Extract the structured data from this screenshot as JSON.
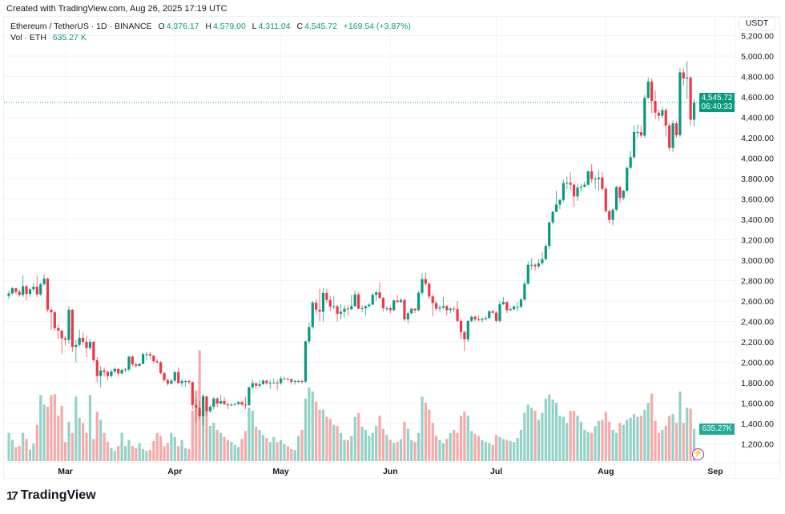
{
  "header": {
    "created": "Created with TradingView.com, Aug 26, 2025 17:19 UTC"
  },
  "legend": {
    "symbol": "Ethereum / TetherUS · 1D · BINANCE",
    "o_label": "O",
    "o": "4,376.17",
    "h_label": "H",
    "h": "4,579.00",
    "l_label": "L",
    "l": "4,311.04",
    "c_label": "C",
    "c": "4,545.72",
    "change": "+169.54 (+3.87%)",
    "vol_label": "Vol · ETH",
    "vol": "635.27 K"
  },
  "price_axis": {
    "currency": "USDT",
    "last_price": "4,545.72",
    "countdown": "06:40:33",
    "volume_label": "635.27K"
  },
  "logo": {
    "text": "TradingView"
  },
  "colors": {
    "up": "#089981",
    "down": "#f23645",
    "vol_up": "#92d2c8",
    "vol_down": "#f7a9a7",
    "grid": "#f0f3fa"
  },
  "icons": {
    "alert": "lightning-icon",
    "logo": "tradingview-logo"
  },
  "chart_data": {
    "type": "candlestick",
    "title": "",
    "start_date": "2025-02-13",
    "interval": "1D",
    "ylim": [
      1100,
      5250
    ],
    "y_ticks": [
      "1,200.00",
      "1,400.00",
      "1,600.00",
      "1,800.00",
      "2,000.00",
      "2,200.00",
      "2,400.00",
      "2,600.00",
      "2,800.00",
      "3,000.00",
      "3,200.00",
      "3,400.00",
      "3,600.00",
      "3,800.00",
      "4,000.00",
      "4,200.00",
      "4,400.00",
      "4,600.00",
      "4,800.00",
      "5,000.00",
      "5,200.00"
    ],
    "x_ticks": [
      {
        "label": "Mar",
        "date": "2025-03-01"
      },
      {
        "label": "Apr",
        "date": "2025-04-01"
      },
      {
        "label": "May",
        "date": "2025-05-01"
      },
      {
        "label": "Jun",
        "date": "2025-06-01"
      },
      {
        "label": "Jul",
        "date": "2025-07-01"
      },
      {
        "label": "Aug",
        "date": "2025-08-01"
      },
      {
        "label": "Sep",
        "date": "2025-09-01"
      }
    ],
    "grid": true,
    "last_price": 4545.72,
    "ohlc": [
      [
        2650,
        2700,
        2620,
        2675
      ],
      [
        2675,
        2740,
        2660,
        2725
      ],
      [
        2725,
        2730,
        2670,
        2690
      ],
      [
        2690,
        2710,
        2640,
        2660
      ],
      [
        2660,
        2850,
        2640,
        2745
      ],
      [
        2745,
        2760,
        2610,
        2670
      ],
      [
        2670,
        2730,
        2640,
        2715
      ],
      [
        2715,
        2780,
        2690,
        2740
      ],
      [
        2740,
        2850,
        2640,
        2665
      ],
      [
        2665,
        2780,
        2650,
        2765
      ],
      [
        2765,
        2860,
        2750,
        2820
      ],
      [
        2820,
        2830,
        2490,
        2515
      ],
      [
        2515,
        2540,
        2320,
        2490
      ],
      [
        2490,
        2510,
        2310,
        2335
      ],
      [
        2335,
        2370,
        2230,
        2310
      ],
      [
        2310,
        2320,
        2080,
        2235
      ],
      [
        2235,
        2260,
        2160,
        2220
      ],
      [
        2220,
        2550,
        2180,
        2515
      ],
      [
        2515,
        2520,
        2100,
        2150
      ],
      [
        2150,
        2220,
        2000,
        2170
      ],
      [
        2170,
        2320,
        2150,
        2240
      ],
      [
        2240,
        2290,
        2170,
        2200
      ],
      [
        2200,
        2260,
        2050,
        2140
      ],
      [
        2140,
        2230,
        2120,
        2200
      ],
      [
        2200,
        2210,
        2000,
        2020
      ],
      [
        2020,
        2050,
        1810,
        1865
      ],
      [
        1865,
        1960,
        1755,
        1920
      ],
      [
        1920,
        1950,
        1860,
        1905
      ],
      [
        1905,
        1920,
        1825,
        1865
      ],
      [
        1865,
        1930,
        1850,
        1910
      ],
      [
        1910,
        1950,
        1890,
        1935
      ],
      [
        1935,
        1940,
        1870,
        1890
      ],
      [
        1890,
        1935,
        1880,
        1925
      ],
      [
        1925,
        1945,
        1900,
        1930
      ],
      [
        1930,
        2065,
        1910,
        2055
      ],
      [
        2055,
        2070,
        1960,
        1980
      ],
      [
        1980,
        2000,
        1945,
        1965
      ],
      [
        1965,
        1995,
        1960,
        1985
      ],
      [
        1985,
        2090,
        1980,
        2080
      ],
      [
        2080,
        2100,
        2020,
        2080
      ],
      [
        2080,
        2100,
        2030,
        2065
      ],
      [
        2065,
        2070,
        1990,
        2010
      ],
      [
        2010,
        2025,
        1985,
        2000
      ],
      [
        2000,
        2010,
        1880,
        1895
      ],
      [
        1895,
        1900,
        1810,
        1825
      ],
      [
        1825,
        1840,
        1770,
        1790
      ],
      [
        1790,
        1840,
        1780,
        1820
      ],
      [
        1820,
        1910,
        1800,
        1905
      ],
      [
        1905,
        1950,
        1790,
        1795
      ],
      [
        1795,
        1840,
        1760,
        1815
      ],
      [
        1815,
        1830,
        1760,
        1815
      ],
      [
        1815,
        1830,
        1780,
        1805
      ],
      [
        1805,
        1810,
        1540,
        1580
      ],
      [
        1580,
        1640,
        1410,
        1555
      ],
      [
        1555,
        1620,
        1440,
        1470
      ],
      [
        1470,
        1690,
        1380,
        1665
      ],
      [
        1665,
        1670,
        1470,
        1520
      ],
      [
        1520,
        1580,
        1505,
        1565
      ],
      [
        1565,
        1660,
        1540,
        1645
      ],
      [
        1645,
        1660,
        1560,
        1595
      ],
      [
        1595,
        1680,
        1590,
        1620
      ],
      [
        1620,
        1660,
        1580,
        1590
      ],
      [
        1590,
        1600,
        1540,
        1580
      ],
      [
        1580,
        1600,
        1570,
        1585
      ],
      [
        1585,
        1600,
        1575,
        1590
      ],
      [
        1590,
        1620,
        1580,
        1610
      ],
      [
        1610,
        1620,
        1570,
        1585
      ],
      [
        1585,
        1660,
        1540,
        1580
      ],
      [
        1580,
        1760,
        1570,
        1755
      ],
      [
        1755,
        1830,
        1740,
        1795
      ],
      [
        1795,
        1800,
        1740,
        1770
      ],
      [
        1770,
        1820,
        1750,
        1785
      ],
      [
        1785,
        1830,
        1780,
        1820
      ],
      [
        1820,
        1830,
        1780,
        1795
      ],
      [
        1795,
        1830,
        1740,
        1800
      ],
      [
        1800,
        1840,
        1790,
        1800
      ],
      [
        1800,
        1830,
        1730,
        1795
      ],
      [
        1795,
        1860,
        1780,
        1840
      ],
      [
        1840,
        1855,
        1830,
        1840
      ],
      [
        1840,
        1850,
        1820,
        1835
      ],
      [
        1835,
        1840,
        1780,
        1810
      ],
      [
        1810,
        1830,
        1780,
        1815
      ],
      [
        1815,
        1830,
        1800,
        1815
      ],
      [
        1815,
        1830,
        1790,
        1810
      ],
      [
        1810,
        2210,
        1800,
        2205
      ],
      [
        2205,
        2390,
        2180,
        2345
      ],
      [
        2345,
        2600,
        2330,
        2585
      ],
      [
        2585,
        2620,
        2470,
        2515
      ],
      [
        2515,
        2720,
        2400,
        2495
      ],
      [
        2495,
        2730,
        2400,
        2680
      ],
      [
        2680,
        2720,
        2580,
        2610
      ],
      [
        2610,
        2650,
        2500,
        2545
      ],
      [
        2545,
        2650,
        2520,
        2550
      ],
      [
        2550,
        2560,
        2400,
        2475
      ],
      [
        2475,
        2570,
        2420,
        2495
      ],
      [
        2495,
        2560,
        2440,
        2525
      ],
      [
        2525,
        2560,
        2460,
        2520
      ],
      [
        2520,
        2660,
        2510,
        2550
      ],
      [
        2550,
        2700,
        2540,
        2665
      ],
      [
        2665,
        2690,
        2520,
        2525
      ],
      [
        2525,
        2560,
        2490,
        2530
      ],
      [
        2530,
        2560,
        2460,
        2550
      ],
      [
        2550,
        2580,
        2530,
        2565
      ],
      [
        2565,
        2680,
        2560,
        2660
      ],
      [
        2660,
        2700,
        2600,
        2685
      ],
      [
        2685,
        2780,
        2620,
        2630
      ],
      [
        2630,
        2640,
        2500,
        2530
      ],
      [
        2530,
        2550,
        2500,
        2530
      ],
      [
        2530,
        2550,
        2480,
        2510
      ],
      [
        2510,
        2620,
        2500,
        2605
      ],
      [
        2605,
        2660,
        2580,
        2590
      ],
      [
        2590,
        2630,
        2580,
        2610
      ],
      [
        2610,
        2630,
        2400,
        2420
      ],
      [
        2420,
        2500,
        2380,
        2480
      ],
      [
        2480,
        2530,
        2470,
        2525
      ],
      [
        2525,
        2530,
        2480,
        2510
      ],
      [
        2510,
        2700,
        2500,
        2680
      ],
      [
        2680,
        2870,
        2660,
        2815
      ],
      [
        2815,
        2880,
        2750,
        2770
      ],
      [
        2770,
        2780,
        2620,
        2645
      ],
      [
        2645,
        2660,
        2450,
        2580
      ],
      [
        2580,
        2600,
        2500,
        2525
      ],
      [
        2525,
        2560,
        2490,
        2535
      ],
      [
        2535,
        2640,
        2520,
        2550
      ],
      [
        2550,
        2560,
        2460,
        2510
      ],
      [
        2510,
        2540,
        2480,
        2525
      ],
      [
        2525,
        2550,
        2490,
        2520
      ],
      [
        2520,
        2600,
        2390,
        2405
      ],
      [
        2405,
        2430,
        2230,
        2295
      ],
      [
        2295,
        2310,
        2110,
        2225
      ],
      [
        2225,
        2410,
        2200,
        2405
      ],
      [
        2405,
        2460,
        2390,
        2445
      ],
      [
        2445,
        2460,
        2400,
        2420
      ],
      [
        2420,
        2460,
        2400,
        2415
      ],
      [
        2415,
        2440,
        2390,
        2425
      ],
      [
        2425,
        2450,
        2410,
        2435
      ],
      [
        2435,
        2510,
        2420,
        2500
      ],
      [
        2500,
        2520,
        2470,
        2485
      ],
      [
        2485,
        2500,
        2390,
        2405
      ],
      [
        2405,
        2600,
        2390,
        2570
      ],
      [
        2570,
        2640,
        2560,
        2590
      ],
      [
        2590,
        2600,
        2480,
        2510
      ],
      [
        2510,
        2540,
        2500,
        2520
      ],
      [
        2520,
        2560,
        2510,
        2545
      ],
      [
        2545,
        2590,
        2500,
        2545
      ],
      [
        2545,
        2630,
        2530,
        2615
      ],
      [
        2615,
        2790,
        2600,
        2770
      ],
      [
        2770,
        2990,
        2760,
        2955
      ],
      [
        2955,
        3020,
        2910,
        2955
      ],
      [
        2955,
        2970,
        2900,
        2940
      ],
      [
        2940,
        3010,
        2920,
        2970
      ],
      [
        2970,
        3080,
        2950,
        3010
      ],
      [
        3010,
        3160,
        3000,
        3140
      ],
      [
        3140,
        3380,
        3110,
        3370
      ],
      [
        3370,
        3480,
        3350,
        3475
      ],
      [
        3475,
        3680,
        3470,
        3545
      ],
      [
        3545,
        3600,
        3500,
        3590
      ],
      [
        3590,
        3790,
        3570,
        3755
      ],
      [
        3755,
        3820,
        3700,
        3760
      ],
      [
        3760,
        3860,
        3690,
        3740
      ],
      [
        3740,
        3750,
        3520,
        3625
      ],
      [
        3625,
        3750,
        3580,
        3710
      ],
      [
        3710,
        3750,
        3670,
        3720
      ],
      [
        3720,
        3770,
        3710,
        3740
      ],
      [
        3740,
        3880,
        3730,
        3870
      ],
      [
        3870,
        3940,
        3760,
        3795
      ],
      [
        3795,
        3830,
        3700,
        3795
      ],
      [
        3795,
        3880,
        3680,
        3810
      ],
      [
        3810,
        3860,
        3680,
        3700
      ],
      [
        3700,
        3720,
        3470,
        3480
      ],
      [
        3480,
        3500,
        3360,
        3395
      ],
      [
        3395,
        3510,
        3340,
        3495
      ],
      [
        3495,
        3730,
        3480,
        3715
      ],
      [
        3715,
        3730,
        3560,
        3610
      ],
      [
        3610,
        3690,
        3590,
        3680
      ],
      [
        3680,
        3920,
        3670,
        3905
      ],
      [
        3905,
        4070,
        3890,
        4010
      ],
      [
        4010,
        4320,
        3990,
        4255
      ],
      [
        4255,
        4330,
        4200,
        4255
      ],
      [
        4255,
        4320,
        4200,
        4220
      ],
      [
        4220,
        4620,
        4200,
        4590
      ],
      [
        4590,
        4790,
        4580,
        4750
      ],
      [
        4750,
        4780,
        4440,
        4560
      ],
      [
        4560,
        4660,
        4380,
        4445
      ],
      [
        4445,
        4480,
        4360,
        4415
      ],
      [
        4415,
        4500,
        4390,
        4470
      ],
      [
        4470,
        4490,
        4210,
        4320
      ],
      [
        4320,
        4340,
        4070,
        4100
      ],
      [
        4100,
        4370,
        4060,
        4340
      ],
      [
        4340,
        4360,
        4200,
        4225
      ],
      [
        4225,
        4880,
        4210,
        4840
      ],
      [
        4840,
        4880,
        4710,
        4780
      ],
      [
        4780,
        4950,
        4580,
        4790
      ],
      [
        4790,
        4800,
        4320,
        4376.17
      ],
      [
        4376.17,
        4579,
        4311.04,
        4545.72
      ]
    ],
    "volume_k": [
      560,
      420,
      280,
      300,
      560,
      440,
      230,
      350,
      720,
      1310,
      1120,
      1080,
      1310,
      1330,
      900,
      1100,
      380,
      780,
      560,
      1280,
      860,
      760,
      560,
      1310,
      440,
      980,
      820,
      560,
      380,
      260,
      200,
      300,
      560,
      300,
      420,
      300,
      260,
      360,
      240,
      200,
      220,
      400,
      560,
      500,
      300,
      360,
      560,
      480,
      300,
      420,
      260,
      240,
      1000,
      1400,
      2200,
      1300,
      1120,
      700,
      760,
      620,
      560,
      480,
      420,
      380,
      320,
      280,
      440,
      600,
      1060,
      1000,
      680,
      620,
      520,
      460,
      380,
      480,
      380,
      420,
      340,
      300,
      240,
      220,
      500,
      620,
      1240,
      1460,
      1380,
      1180,
      1020,
      1020,
      880,
      840,
      720,
      700,
      560,
      420,
      420,
      500,
      880,
      960,
      680,
      620,
      500,
      560,
      700,
      900,
      640,
      520,
      420,
      360,
      380,
      440,
      780,
      640,
      420,
      380,
      560,
      1280,
      1160,
      1020,
      760,
      500,
      420,
      360,
      440,
      560,
      620,
      560,
      900,
      980,
      900,
      600,
      540,
      500,
      420,
      380,
      360,
      320,
      520,
      480,
      440,
      420,
      400,
      380,
      460,
      620,
      960,
      1120,
      1060,
      1000,
      820,
      960,
      1240,
      1320,
      1220,
      1160,
      900,
      880,
      760,
      1000,
      1000,
      900,
      780,
      620,
      580,
      560,
      700,
      800,
      820,
      980,
      780,
      620,
      560,
      760,
      720,
      820,
      860,
      940,
      880,
      900,
      1020,
      1160,
      1340,
      800,
      560,
      620,
      700,
      900,
      940,
      760,
      1380,
      760,
      1060,
      1040,
      635.27
    ]
  }
}
